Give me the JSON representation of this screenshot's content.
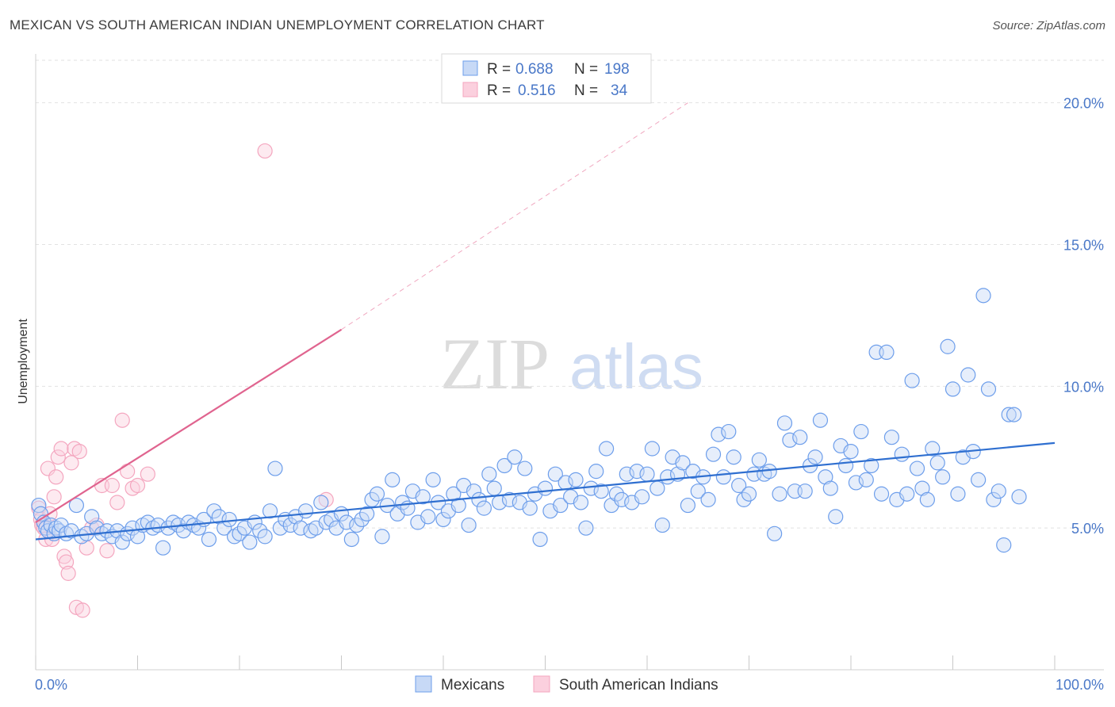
{
  "header": {
    "title": "MEXICAN VS SOUTH AMERICAN INDIAN UNEMPLOYMENT CORRELATION CHART",
    "source": "Source: ZipAtlas.com"
  },
  "watermark": {
    "zip": "ZIP",
    "atlas": "atlas"
  },
  "colors": {
    "blue": "#6d9eeb",
    "blue_line": "#2f6fd0",
    "pink": "#f4a6bf",
    "pink_line": "#e0648f",
    "tick": "#4a78c8"
  },
  "chart_data": {
    "type": "scatter",
    "ylabel": "Unemployment",
    "xlim": [
      0,
      100
    ],
    "ylim": [
      0,
      21.5
    ],
    "x_tick_labels": [
      "0.0%",
      "100.0%"
    ],
    "y_ticks": [
      5,
      10,
      15,
      20
    ],
    "y_tick_labels": [
      "5.0%",
      "10.0%",
      "15.0%",
      "20.0%"
    ],
    "grid": "horizontal dashed",
    "legend": {
      "position": "top-center",
      "rows": [
        {
          "r_label": "R =",
          "r_value": "0.688",
          "n_label": "N =",
          "n_value": "198"
        },
        {
          "r_label": "R =",
          "r_value": "0.516",
          "n_label": "N =",
          "n_value": "34"
        }
      ]
    },
    "series": [
      {
        "name": "Mexicans",
        "color": "#6d9eeb",
        "trend": {
          "x": [
            0,
            100
          ],
          "y": [
            4.6,
            8.0
          ]
        },
        "points": [
          [
            0.3,
            5.8
          ],
          [
            0.5,
            5.5
          ],
          [
            0.8,
            5.2
          ],
          [
            1.0,
            5.0
          ],
          [
            1.2,
            4.9
          ],
          [
            1.5,
            5.1
          ],
          [
            1.8,
            4.8
          ],
          [
            2.0,
            5.0
          ],
          [
            2.3,
            4.9
          ],
          [
            2.5,
            5.1
          ],
          [
            3.0,
            4.8
          ],
          [
            3.5,
            4.9
          ],
          [
            4.0,
            5.8
          ],
          [
            4.5,
            4.7
          ],
          [
            5.0,
            4.8
          ],
          [
            5.5,
            5.4
          ],
          [
            6.0,
            5.0
          ],
          [
            6.5,
            4.8
          ],
          [
            7.0,
            4.9
          ],
          [
            7.5,
            4.7
          ],
          [
            8.0,
            4.9
          ],
          [
            8.5,
            4.5
          ],
          [
            9.0,
            4.8
          ],
          [
            9.5,
            5.0
          ],
          [
            10.0,
            4.7
          ],
          [
            10.5,
            5.1
          ],
          [
            11.0,
            5.2
          ],
          [
            11.5,
            5.0
          ],
          [
            12.0,
            5.1
          ],
          [
            12.5,
            4.3
          ],
          [
            13.0,
            5.0
          ],
          [
            13.5,
            5.2
          ],
          [
            14.0,
            5.1
          ],
          [
            14.5,
            4.9
          ],
          [
            15.0,
            5.2
          ],
          [
            15.5,
            5.1
          ],
          [
            16.0,
            5.0
          ],
          [
            16.5,
            5.3
          ],
          [
            17.0,
            4.6
          ],
          [
            17.5,
            5.6
          ],
          [
            18.0,
            5.4
          ],
          [
            18.5,
            5.0
          ],
          [
            19.0,
            5.3
          ],
          [
            19.5,
            4.7
          ],
          [
            20.0,
            4.8
          ],
          [
            20.5,
            5.0
          ],
          [
            21.0,
            4.5
          ],
          [
            21.5,
            5.2
          ],
          [
            22.0,
            4.9
          ],
          [
            22.5,
            4.7
          ],
          [
            23.0,
            5.6
          ],
          [
            23.5,
            7.1
          ],
          [
            24.0,
            5.0
          ],
          [
            24.5,
            5.3
          ],
          [
            25.0,
            5.1
          ],
          [
            25.5,
            5.4
          ],
          [
            26.0,
            5.0
          ],
          [
            26.5,
            5.6
          ],
          [
            27.0,
            4.9
          ],
          [
            27.5,
            5.0
          ],
          [
            28.0,
            5.9
          ],
          [
            28.5,
            5.2
          ],
          [
            29.0,
            5.3
          ],
          [
            29.5,
            5.0
          ],
          [
            30.0,
            5.5
          ],
          [
            30.5,
            5.2
          ],
          [
            31.0,
            4.6
          ],
          [
            31.5,
            5.1
          ],
          [
            32.0,
            5.3
          ],
          [
            32.5,
            5.5
          ],
          [
            33.0,
            6.0
          ],
          [
            33.5,
            6.2
          ],
          [
            34.0,
            4.7
          ],
          [
            34.5,
            5.8
          ],
          [
            35.0,
            6.7
          ],
          [
            35.5,
            5.5
          ],
          [
            36.0,
            5.9
          ],
          [
            36.5,
            5.7
          ],
          [
            37.0,
            6.3
          ],
          [
            37.5,
            5.2
          ],
          [
            38.0,
            6.1
          ],
          [
            38.5,
            5.4
          ],
          [
            39.0,
            6.7
          ],
          [
            39.5,
            5.9
          ],
          [
            40.0,
            5.3
          ],
          [
            40.5,
            5.6
          ],
          [
            41.0,
            6.2
          ],
          [
            41.5,
            5.8
          ],
          [
            42.0,
            6.5
          ],
          [
            42.5,
            5.1
          ],
          [
            43.0,
            6.3
          ],
          [
            43.5,
            6.0
          ],
          [
            44.0,
            5.7
          ],
          [
            44.5,
            6.9
          ],
          [
            45.0,
            6.4
          ],
          [
            45.5,
            5.9
          ],
          [
            46.0,
            7.2
          ],
          [
            46.5,
            6.0
          ],
          [
            47.0,
            7.5
          ],
          [
            47.5,
            5.9
          ],
          [
            48.0,
            7.1
          ],
          [
            48.5,
            5.7
          ],
          [
            49.0,
            6.2
          ],
          [
            49.5,
            4.6
          ],
          [
            50.0,
            6.4
          ],
          [
            50.5,
            5.6
          ],
          [
            51.0,
            6.9
          ],
          [
            51.5,
            5.8
          ],
          [
            52.0,
            6.6
          ],
          [
            52.5,
            6.1
          ],
          [
            53.0,
            6.7
          ],
          [
            53.5,
            5.9
          ],
          [
            54.0,
            5.0
          ],
          [
            54.5,
            6.4
          ],
          [
            55.0,
            7.0
          ],
          [
            55.5,
            6.3
          ],
          [
            56.0,
            7.8
          ],
          [
            56.5,
            5.8
          ],
          [
            57.0,
            6.2
          ],
          [
            57.5,
            6.0
          ],
          [
            58.0,
            6.9
          ],
          [
            58.5,
            5.9
          ],
          [
            59.0,
            7.0
          ],
          [
            59.5,
            6.1
          ],
          [
            60.0,
            6.9
          ],
          [
            60.5,
            7.8
          ],
          [
            61.0,
            6.4
          ],
          [
            61.5,
            5.1
          ],
          [
            62.0,
            6.8
          ],
          [
            62.5,
            7.5
          ],
          [
            63.0,
            6.9
          ],
          [
            63.5,
            7.3
          ],
          [
            64.0,
            5.8
          ],
          [
            64.5,
            7.0
          ],
          [
            65.0,
            6.3
          ],
          [
            65.5,
            6.8
          ],
          [
            66.0,
            6.0
          ],
          [
            66.5,
            7.6
          ],
          [
            67.0,
            8.3
          ],
          [
            67.5,
            6.8
          ],
          [
            68.0,
            8.4
          ],
          [
            68.5,
            7.5
          ],
          [
            69.0,
            6.5
          ],
          [
            69.5,
            6.0
          ],
          [
            70.0,
            6.2
          ],
          [
            70.5,
            6.9
          ],
          [
            71.0,
            7.4
          ],
          [
            71.5,
            6.9
          ],
          [
            72.0,
            7.0
          ],
          [
            72.5,
            4.8
          ],
          [
            73.0,
            6.2
          ],
          [
            73.5,
            8.7
          ],
          [
            74.0,
            8.1
          ],
          [
            74.5,
            6.3
          ],
          [
            75.0,
            8.2
          ],
          [
            75.5,
            6.3
          ],
          [
            76.0,
            7.2
          ],
          [
            76.5,
            7.5
          ],
          [
            77.0,
            8.8
          ],
          [
            77.5,
            6.8
          ],
          [
            78.0,
            6.4
          ],
          [
            78.5,
            5.4
          ],
          [
            79.0,
            7.9
          ],
          [
            79.5,
            7.2
          ],
          [
            80.0,
            7.7
          ],
          [
            80.5,
            6.6
          ],
          [
            81.0,
            8.4
          ],
          [
            81.5,
            6.7
          ],
          [
            82.0,
            7.2
          ],
          [
            82.5,
            11.2
          ],
          [
            83.0,
            6.2
          ],
          [
            83.5,
            11.2
          ],
          [
            84.0,
            8.2
          ],
          [
            84.5,
            6.0
          ],
          [
            85.0,
            7.6
          ],
          [
            85.5,
            6.2
          ],
          [
            86.0,
            10.2
          ],
          [
            86.5,
            7.1
          ],
          [
            87.0,
            6.4
          ],
          [
            87.5,
            6.0
          ],
          [
            88.0,
            7.8
          ],
          [
            88.5,
            7.3
          ],
          [
            89.0,
            6.8
          ],
          [
            89.5,
            11.4
          ],
          [
            90.0,
            9.9
          ],
          [
            90.5,
            6.2
          ],
          [
            91.0,
            7.5
          ],
          [
            91.5,
            10.4
          ],
          [
            92.0,
            7.7
          ],
          [
            92.5,
            6.7
          ],
          [
            93.0,
            13.2
          ],
          [
            93.5,
            9.9
          ],
          [
            94.0,
            6.0
          ],
          [
            94.5,
            6.3
          ],
          [
            95.0,
            4.4
          ],
          [
            95.5,
            9.0
          ],
          [
            96.0,
            9.0
          ],
          [
            96.5,
            6.1
          ]
        ]
      },
      {
        "name": "South American Indians",
        "color": "#f4a6bf",
        "trend": {
          "x": [
            0,
            30
          ],
          "y": [
            5.2,
            12.0
          ],
          "extended": {
            "x": [
              30,
              64
            ],
            "y": [
              12.0,
              20.0
            ]
          }
        },
        "points": [
          [
            0.3,
            5.7
          ],
          [
            0.5,
            5.3
          ],
          [
            0.6,
            5.1
          ],
          [
            0.8,
            5.0
          ],
          [
            1.0,
            4.6
          ],
          [
            1.2,
            7.1
          ],
          [
            1.4,
            5.5
          ],
          [
            1.6,
            4.6
          ],
          [
            1.8,
            6.1
          ],
          [
            2.0,
            6.8
          ],
          [
            2.2,
            7.5
          ],
          [
            2.5,
            7.8
          ],
          [
            2.8,
            4.0
          ],
          [
            3.0,
            3.8
          ],
          [
            3.2,
            3.4
          ],
          [
            3.5,
            7.3
          ],
          [
            3.8,
            7.8
          ],
          [
            4.0,
            2.2
          ],
          [
            4.3,
            7.7
          ],
          [
            4.6,
            2.1
          ],
          [
            5.0,
            4.3
          ],
          [
            5.5,
            5.0
          ],
          [
            6.0,
            5.1
          ],
          [
            6.5,
            6.5
          ],
          [
            7.0,
            4.2
          ],
          [
            7.5,
            6.5
          ],
          [
            8.0,
            5.9
          ],
          [
            8.5,
            8.8
          ],
          [
            9.0,
            7.0
          ],
          [
            9.5,
            6.4
          ],
          [
            10.0,
            6.5
          ],
          [
            11.0,
            6.9
          ],
          [
            22.5,
            18.3
          ],
          [
            28.5,
            6.0
          ]
        ]
      }
    ]
  }
}
